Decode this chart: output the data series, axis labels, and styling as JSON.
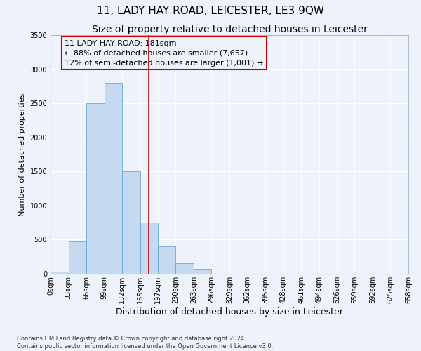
{
  "title": "11, LADY HAY ROAD, LEICESTER, LE3 9QW",
  "subtitle": "Size of property relative to detached houses in Leicester",
  "xlabel": "Distribution of detached houses by size in Leicester",
  "ylabel": "Number of detached properties",
  "bin_edges": [
    0,
    33,
    66,
    99,
    132,
    165,
    197,
    230,
    263,
    296,
    329,
    362,
    395,
    428,
    461,
    494,
    526,
    559,
    592,
    625,
    658
  ],
  "bin_labels": [
    "0sqm",
    "33sqm",
    "66sqm",
    "99sqm",
    "132sqm",
    "165sqm",
    "197sqm",
    "230sqm",
    "263sqm",
    "296sqm",
    "329sqm",
    "362sqm",
    "395sqm",
    "428sqm",
    "461sqm",
    "494sqm",
    "526sqm",
    "559sqm",
    "592sqm",
    "625sqm",
    "658sqm"
  ],
  "bar_heights": [
    30,
    470,
    2500,
    2800,
    1500,
    750,
    400,
    150,
    70,
    0,
    0,
    0,
    0,
    0,
    0,
    0,
    0,
    0,
    0,
    0
  ],
  "bar_color": "#c5d9f0",
  "bar_edgecolor": "#6aaad4",
  "ylim": [
    0,
    3500
  ],
  "yticks": [
    0,
    500,
    1000,
    1500,
    2000,
    2500,
    3000,
    3500
  ],
  "vline_x": 181,
  "vline_color": "#cc0000",
  "annotation_line1": "11 LADY HAY ROAD: 181sqm",
  "annotation_line2": "← 88% of detached houses are smaller (7,657)",
  "annotation_line3": "12% of semi-detached houses are larger (1,001) →",
  "box_edgecolor": "#cc0000",
  "title_fontsize": 11,
  "subtitle_fontsize": 10,
  "xlabel_fontsize": 9,
  "ylabel_fontsize": 8,
  "annot_fontsize": 8,
  "tick_fontsize": 7,
  "footer_text": "Contains HM Land Registry data © Crown copyright and database right 2024.\nContains public sector information licensed under the Open Government Licence v3.0.",
  "background_color": "#eef2fa",
  "grid_color": "#ffffff"
}
